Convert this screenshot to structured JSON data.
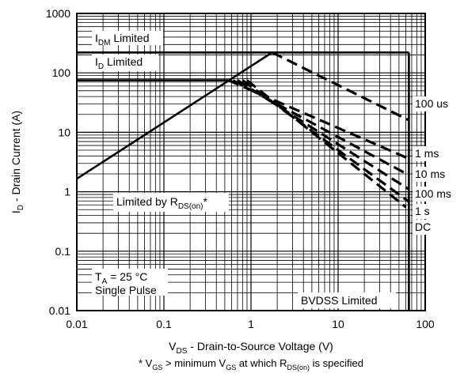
{
  "chart_data": {
    "type": "line",
    "xscale": "log",
    "yscale": "log",
    "xlim": [
      0.01,
      100
    ],
    "ylim": [
      0.01,
      1000
    ],
    "grid": true,
    "xticks": [
      "0.01",
      "0.1",
      "1",
      "10",
      "100"
    ],
    "yticks": [
      "1000",
      "100",
      "10",
      "1",
      "0.1",
      "0.01"
    ],
    "xlabel": {
      "prefix": "V",
      "sub": "DS",
      "rest": " - Drain-to-Source Voltage (V)"
    },
    "ylabel": {
      "prefix": "I",
      "sub": "D",
      "rest": " - Drain Current (A)"
    },
    "footnote": {
      "a": "* V",
      "a_sub": "GS",
      "b": " > minimum V",
      "b_sub": "GS",
      "c": " at which R",
      "c_sub": "DS(on)",
      "d": " is specified"
    },
    "annotations": {
      "idm_limited": {
        "prefix": "I",
        "sub": "DM",
        "rest": " Limited"
      },
      "id_limited": {
        "prefix": "I",
        "sub": "D",
        "rest": " Limited"
      },
      "rds_limited": {
        "prefix": "Limited by R",
        "sub": "DS(on)",
        "rest": "*"
      },
      "conditions_1": {
        "prefix": "T",
        "sub": "A",
        "rest": " = 25 °C"
      },
      "conditions_2": "Single Pulse",
      "bvdss_limited": "BVDSS Limited"
    },
    "boundaries": [
      {
        "name": "Limited by R_DS(on)",
        "style": "solid",
        "x": [
          0.01,
          1.75
        ],
        "y": [
          1.65,
          220
        ]
      },
      {
        "name": "I_DM Limited",
        "style": "solid",
        "x": [
          0.01,
          65
        ],
        "y": [
          220,
          220
        ]
      },
      {
        "name": "I_D Limited",
        "style": "solid",
        "x": [
          0.01,
          0.55
        ],
        "y": [
          75,
          75
        ]
      },
      {
        "name": "BVDSS Limited",
        "style": "solid",
        "x": [
          65,
          65
        ],
        "y": [
          220,
          0.01
        ]
      }
    ],
    "series": [
      {
        "name": "100 us",
        "style": "dashed",
        "x": [
          1.75,
          65
        ],
        "y": [
          220,
          16
        ]
      },
      {
        "name": "1 ms",
        "style": "dashed",
        "x": [
          0.55,
          65
        ],
        "y": [
          75,
          3.6
        ]
      },
      {
        "name": "10 ms",
        "style": "dashed",
        "x": [
          0.62,
          65
        ],
        "y": [
          75,
          1.9
        ]
      },
      {
        "name": "100 ms",
        "style": "dashed",
        "x": [
          0.7,
          65
        ],
        "y": [
          75,
          1.1
        ]
      },
      {
        "name": "1 s",
        "style": "dashed",
        "x": [
          0.8,
          65
        ],
        "y": [
          75,
          0.68
        ]
      },
      {
        "name": "DC",
        "style": "dashed",
        "x": [
          0.9,
          60
        ],
        "y": [
          75,
          0.55
        ]
      }
    ]
  }
}
